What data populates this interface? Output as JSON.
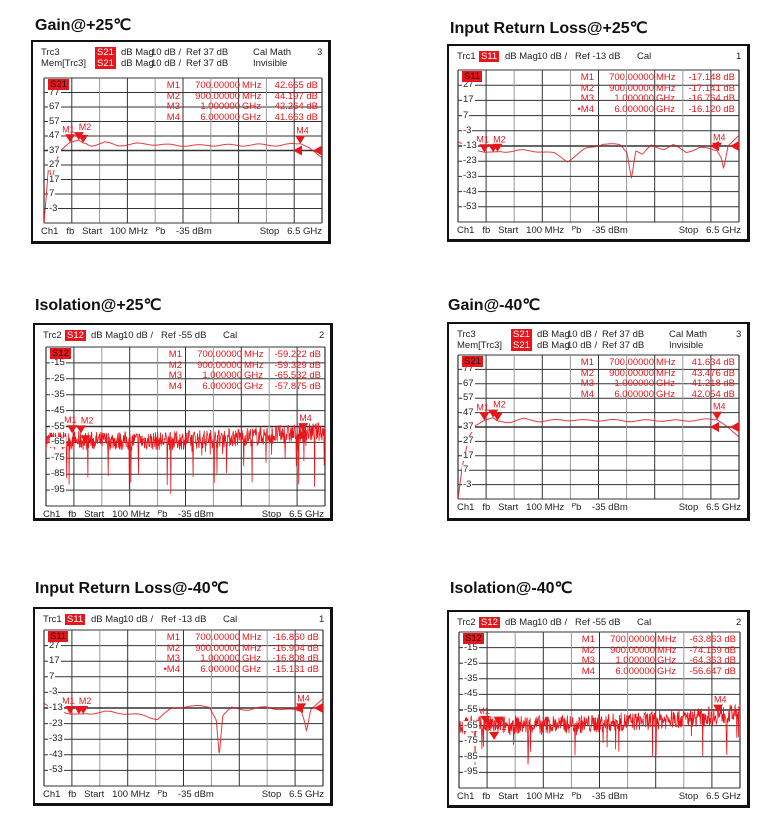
{
  "panels": [
    {
      "title": "Gain@+25℃",
      "header_lines": [
        {
          "trace": "Trc3",
          "param": "S21",
          "format": "dB Mag",
          "scale": "10 dB /",
          "ref": "Ref 37 dB",
          "status": "Cal Math",
          "num": "3"
        },
        {
          "trace": "Mem[Trc3]",
          "param": "S21",
          "format": "dB Mag",
          "scale": "10 dB /",
          "ref": "Ref 37 dB",
          "status": "Invisible",
          "num": ""
        }
      ],
      "trace_badge": "S21",
      "y_top": 87,
      "y_div": 10,
      "y_labels": [
        "77",
        "67",
        "57",
        "47",
        "37",
        "27",
        "17",
        "7",
        "-3"
      ],
      "markers": [
        {
          "name": "M1",
          "freq": "700.00000",
          "unit": "MHz",
          "value": "42.665 dB",
          "f_ghz": 0.7,
          "db": 42.665
        },
        {
          "name": "M2",
          "freq": "900.00000",
          "unit": "MHz",
          "value": "44.197 dB",
          "f_ghz": 0.9,
          "db": 44.197
        },
        {
          "name": "M3",
          "freq": "1.000000",
          "unit": "GHz",
          "value": "42.264 dB",
          "f_ghz": 1.0,
          "db": 42.264
        },
        {
          "name": "M4",
          "freq": "6.000000",
          "unit": "GHz",
          "value": "41.663 dB",
          "f_ghz": 6.0,
          "db": 41.663
        }
      ],
      "ref_arrow_db": 37,
      "footer": {
        "left": "Ch1   fb   Start   100 MHz   ᴾb    -35 dBm",
        "right": "Stop   6.5 GHz"
      },
      "trace": {
        "kind": "smooth",
        "points": [
          [
            0.1,
            -13
          ],
          [
            0.15,
            5
          ],
          [
            0.22,
            32
          ],
          [
            0.26,
            14
          ],
          [
            0.32,
            22
          ],
          [
            0.45,
            36
          ],
          [
            0.7,
            42.7
          ],
          [
            0.9,
            44.2
          ],
          [
            1.0,
            42.3
          ],
          [
            1.2,
            40.5
          ],
          [
            1.5,
            42.5
          ],
          [
            1.8,
            40.5
          ],
          [
            2.2,
            41.6
          ],
          [
            2.7,
            41.2
          ],
          [
            3.2,
            40.5
          ],
          [
            3.7,
            40.4
          ],
          [
            4.2,
            40.8
          ],
          [
            4.6,
            40.5
          ],
          [
            5.0,
            41.0
          ],
          [
            5.5,
            40.6
          ],
          [
            6.0,
            41.7
          ],
          [
            6.2,
            39
          ],
          [
            6.5,
            32
          ]
        ]
      }
    },
    {
      "title": "Input Return Loss@+25℃",
      "header_lines": [
        {
          "trace": "Trc1",
          "param": "S11",
          "format": "dB Mag",
          "scale": "10 dB /",
          "ref": "Ref -13 dB",
          "status": "Cal",
          "num": "1"
        }
      ],
      "trace_badge": "S11",
      "y_top": 37,
      "y_div": 10,
      "y_labels": [
        "27",
        "17",
        "7",
        "-3",
        "-13",
        "-23",
        "-33",
        "-43",
        "-53"
      ],
      "markers": [
        {
          "name": "M1",
          "freq": "700.00000",
          "unit": "MHz",
          "value": "-17.148 dB",
          "f_ghz": 0.7,
          "db": -17.148
        },
        {
          "name": "M2",
          "freq": "900.00000",
          "unit": "MHz",
          "value": "-17.141 dB",
          "f_ghz": 0.9,
          "db": -17.141
        },
        {
          "name": "M3",
          "freq": "1.000000",
          "unit": "GHz",
          "value": "-16.764 dB",
          "f_ghz": 1.0,
          "db": -16.764
        },
        {
          "name": "•M4",
          "freq": "6.000000",
          "unit": "GHz",
          "value": "-16.120 dB",
          "f_ghz": 6.0,
          "db": -16.12
        }
      ],
      "ref_arrow_db": -13,
      "footer": {
        "left": "Ch1   fb   Start   100 MHz   ᴾb    -35 dBm",
        "right": "Stop   6.5 GHz"
      },
      "trace": {
        "kind": "smooth",
        "points": [
          [
            0.1,
            -10
          ],
          [
            0.4,
            -15
          ],
          [
            0.7,
            -17.1
          ],
          [
            1.0,
            -16.8
          ],
          [
            1.5,
            -16
          ],
          [
            2.0,
            -16.5
          ],
          [
            2.3,
            -18
          ],
          [
            2.6,
            -23
          ],
          [
            3.0,
            -15
          ],
          [
            3.4,
            -11.5
          ],
          [
            3.8,
            -12.5
          ],
          [
            3.95,
            -17
          ],
          [
            4.05,
            -34
          ],
          [
            4.15,
            -16
          ],
          [
            4.3,
            -19
          ],
          [
            4.5,
            -12.5
          ],
          [
            4.8,
            -15
          ],
          [
            5.0,
            -12.5
          ],
          [
            5.3,
            -17
          ],
          [
            5.6,
            -14
          ],
          [
            5.9,
            -15.5
          ],
          [
            6.0,
            -16.1
          ],
          [
            6.1,
            -21
          ],
          [
            6.15,
            -28
          ],
          [
            6.25,
            -13
          ],
          [
            6.5,
            -6
          ]
        ]
      }
    },
    {
      "title": "Isolation@+25℃",
      "header_lines": [
        {
          "trace": "Trc2",
          "param": "S12",
          "format": "dB Mag",
          "scale": "10 dB /",
          "ref": "Ref -55 dB",
          "status": "Cal",
          "num": "2"
        }
      ],
      "trace_badge": "S12",
      "y_top": -5,
      "y_div": 10,
      "y_labels": [
        "-15",
        "-25",
        "-35",
        "-45",
        "-55",
        "-65",
        "-75",
        "-85",
        "-95"
      ],
      "markers": [
        {
          "name": "M1",
          "freq": "700.00000",
          "unit": "MHz",
          "value": "-59.222 dB",
          "f_ghz": 0.7,
          "db": -59.222
        },
        {
          "name": "M2",
          "freq": "900.00000",
          "unit": "MHz",
          "value": "-59.329 dB",
          "f_ghz": 0.9,
          "db": -59.329
        },
        {
          "name": "M3",
          "freq": "1.000000",
          "unit": "GHz",
          "value": "-65.532 dB",
          "f_ghz": 1.0,
          "db": -65.532
        },
        {
          "name": "M4",
          "freq": "6.000000",
          "unit": "GHz",
          "value": "-57.875 dB",
          "f_ghz": 6.0,
          "db": -57.875
        }
      ],
      "ref_arrow_db": null,
      "footer": {
        "left": "Ch1   fb   Start   100 MHz   ᴾb    -35 dBm",
        "right": "Stop   6.5 GHz"
      },
      "trace": {
        "kind": "noise",
        "points": [
          [
            0.1,
            -64
          ],
          [
            3.0,
            -64
          ],
          [
            5.0,
            -61
          ],
          [
            6.5,
            -58
          ]
        ],
        "noise_db": 6,
        "spike_db": 30
      }
    },
    {
      "title": "Gain@-40℃",
      "header_lines": [
        {
          "trace": "Trc3",
          "param": "S21",
          "format": "dB Mag",
          "scale": "10 dB /",
          "ref": "Ref 37 dB",
          "status": "Cal Math",
          "num": "3"
        },
        {
          "trace": "Mem[Trc3]",
          "param": "S21",
          "format": "dB Mag",
          "scale": "10 dB /",
          "ref": "Ref 37 dB",
          "status": "Invisible",
          "num": ""
        }
      ],
      "trace_badge": "S21",
      "y_top": 87,
      "y_div": 10,
      "y_labels": [
        "77",
        "67",
        "57",
        "47",
        "37",
        "27",
        "17",
        "7",
        "-3"
      ],
      "markers": [
        {
          "name": "M1",
          "freq": "700.00000",
          "unit": "MHz",
          "value": "41.634 dB",
          "f_ghz": 0.7,
          "db": 41.634
        },
        {
          "name": "M2",
          "freq": "900.00000",
          "unit": "MHz",
          "value": "43.476 dB",
          "f_ghz": 0.9,
          "db": 43.476
        },
        {
          "name": "M3",
          "freq": "1.000000",
          "unit": "GHz",
          "value": "41.218 dB",
          "f_ghz": 1.0,
          "db": 41.218
        },
        {
          "name": "M4",
          "freq": "6.000000",
          "unit": "GHz",
          "value": "42.054 dB",
          "f_ghz": 6.0,
          "db": 42.054
        }
      ],
      "ref_arrow_db": 37,
      "footer": {
        "left": "Ch1   fb   Start   100 MHz   ᴾb    -35 dBm",
        "right": "Stop   6.5 GHz"
      },
      "trace": {
        "kind": "smooth",
        "points": [
          [
            0.1,
            -13
          ],
          [
            0.2,
            10
          ],
          [
            0.35,
            30
          ],
          [
            0.5,
            38
          ],
          [
            0.7,
            41.6
          ],
          [
            0.9,
            43.5
          ],
          [
            1.0,
            41.2
          ],
          [
            1.3,
            40.5
          ],
          [
            1.6,
            42.5
          ],
          [
            2.0,
            41
          ],
          [
            2.5,
            42
          ],
          [
            3.0,
            41.5
          ],
          [
            3.5,
            41.8
          ],
          [
            4.0,
            41.2
          ],
          [
            4.6,
            41.6
          ],
          [
            5.2,
            41.3
          ],
          [
            5.6,
            42
          ],
          [
            6.0,
            42.05
          ],
          [
            6.2,
            38
          ],
          [
            6.5,
            30
          ]
        ]
      }
    },
    {
      "title": "Input Return Loss@-40℃",
      "header_lines": [
        {
          "trace": "Trc1",
          "param": "S11",
          "format": "dB Mag",
          "scale": "10 dB /",
          "ref": "Ref -13 dB",
          "status": "Cal",
          "num": "1"
        }
      ],
      "trace_badge": "S11",
      "y_top": 37,
      "y_div": 10,
      "y_labels": [
        "27",
        "17",
        "7",
        "-3",
        "-13",
        "-23",
        "-33",
        "-43",
        "-53"
      ],
      "markers": [
        {
          "name": "M1",
          "freq": "700.00000",
          "unit": "MHz",
          "value": "-16.860 dB",
          "f_ghz": 0.7,
          "db": -16.86
        },
        {
          "name": "M2",
          "freq": "900.00000",
          "unit": "MHz",
          "value": "-16.904 dB",
          "f_ghz": 0.9,
          "db": -16.904
        },
        {
          "name": "M3",
          "freq": "1.000000",
          "unit": "GHz",
          "value": "-16.808 dB",
          "f_ghz": 1.0,
          "db": -16.808
        },
        {
          "name": "•M4",
          "freq": "6.000000",
          "unit": "GHz",
          "value": "-15.131 dB",
          "f_ghz": 6.0,
          "db": -15.131
        }
      ],
      "ref_arrow_db": -13,
      "footer": {
        "left": "Ch1   fb   Start   100 MHz   ᴾb    -35 dBm",
        "right": "Stop   6.5 GHz"
      },
      "trace": {
        "kind": "smooth",
        "points": [
          [
            0.1,
            -10
          ],
          [
            0.4,
            -15
          ],
          [
            0.7,
            -16.9
          ],
          [
            1.0,
            -16.8
          ],
          [
            1.5,
            -15.5
          ],
          [
            2.0,
            -16.5
          ],
          [
            2.4,
            -18
          ],
          [
            2.7,
            -20
          ],
          [
            3.0,
            -14
          ],
          [
            3.4,
            -11.5
          ],
          [
            3.9,
            -12.5
          ],
          [
            4.05,
            -20
          ],
          [
            4.12,
            -43
          ],
          [
            4.2,
            -18
          ],
          [
            4.4,
            -13
          ],
          [
            4.8,
            -14
          ],
          [
            5.2,
            -12.5
          ],
          [
            5.6,
            -14
          ],
          [
            5.9,
            -14.5
          ],
          [
            6.0,
            -15.1
          ],
          [
            6.08,
            -22
          ],
          [
            6.12,
            -28
          ],
          [
            6.22,
            -14
          ],
          [
            6.5,
            -7
          ]
        ]
      }
    },
    {
      "title": "Isolation@-40℃",
      "header_lines": [
        {
          "trace": "Trc2",
          "param": "S12",
          "format": "dB Mag",
          "scale": "10 dB /",
          "ref": "Ref -55 dB",
          "status": "Cal",
          "num": "2"
        }
      ],
      "trace_badge": "S12",
      "y_top": -5,
      "y_div": 10,
      "y_labels": [
        "-15",
        "-25",
        "-35",
        "-45",
        "-55",
        "-65",
        "-75",
        "-85",
        "-95"
      ],
      "markers": [
        {
          "name": "M1",
          "freq": "700.00000",
          "unit": "MHz",
          "value": "-63.863 dB",
          "f_ghz": 0.7,
          "db": -63.863
        },
        {
          "name": "M2",
          "freq": "900.00000",
          "unit": "MHz",
          "value": "-74.159 dB",
          "f_ghz": 0.9,
          "db": -74.159
        },
        {
          "name": "M3",
          "freq": "1.000000",
          "unit": "GHz",
          "value": "-64.363 dB",
          "f_ghz": 1.0,
          "db": -64.363
        },
        {
          "name": "M4",
          "freq": "6.000000",
          "unit": "GHz",
          "value": "-56.647 dB",
          "f_ghz": 6.0,
          "db": -56.647
        }
      ],
      "ref_arrow_db": null,
      "footer": {
        "left": "Ch1   fb   Start   100 MHz   ᴾb    -35 dBm",
        "right": "Stop   6.5 GHz"
      },
      "trace": {
        "kind": "noise",
        "points": [
          [
            0.1,
            -65
          ],
          [
            3.0,
            -64
          ],
          [
            5.0,
            -61
          ],
          [
            6.5,
            -57
          ]
        ],
        "noise_db": 6,
        "spike_db": 28
      }
    }
  ],
  "x_axis": {
    "start_ghz": 0.1,
    "stop_ghz": 6.5
  },
  "colors": {
    "trace": "#e8161b",
    "badge": "#e8161b",
    "grid": "#333333",
    "grid_light": "#999999"
  }
}
